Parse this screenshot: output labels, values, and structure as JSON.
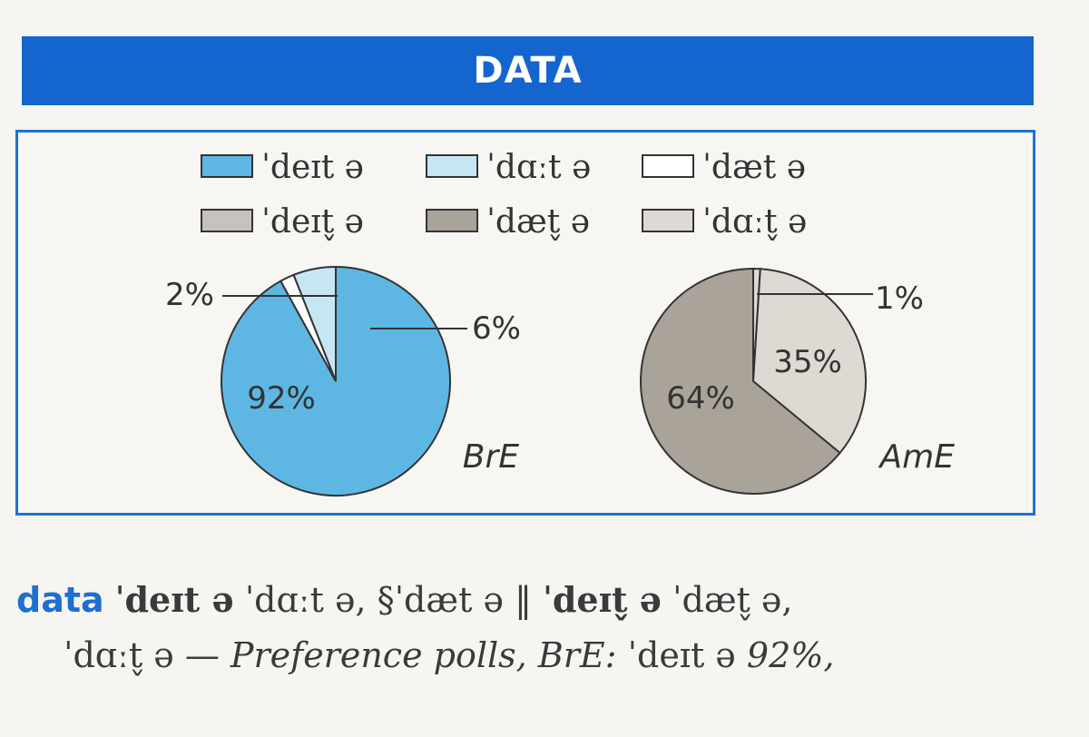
{
  "header": {
    "title": "DATA"
  },
  "chart_data": [
    {
      "type": "pie",
      "label": "BrE",
      "slices": [
        {
          "legend_index": 0,
          "value": 92,
          "label": "92%"
        },
        {
          "legend_index": 2,
          "value": 2,
          "label": "2%"
        },
        {
          "legend_index": 1,
          "value": 6,
          "label": "6%"
        }
      ]
    },
    {
      "type": "pie",
      "label": "AmE",
      "slices": [
        {
          "legend_index": 5,
          "value": 1,
          "label": "1%"
        },
        {
          "legend_index": 5,
          "value": 35,
          "label": "35%"
        },
        {
          "legend_index": 4,
          "value": 64,
          "label": "64%"
        }
      ]
    }
  ],
  "legend": [
    {
      "text": "ˈdeɪt ə",
      "color": "#5eb7e3"
    },
    {
      "text": "ˈdɑːt ə",
      "color": "#c6e6f4"
    },
    {
      "text": "ˈdæt ə",
      "color": "#ffffff"
    },
    {
      "text": "ˈdeɪt̬ ə",
      "color": "#c7c3bc"
    },
    {
      "text": "ˈdæt̬ ə",
      "color": "#a9a39a"
    },
    {
      "text": "ˈdɑːt̬ ə",
      "color": "#dedad3"
    }
  ],
  "entry": {
    "headword": "data",
    "line1_a": "ˈdeɪt ə",
    "line1_b": " ˈdɑːt ə, §ˈdæt ə ‖ ",
    "line1_c": "ˈdeɪt̬ ə",
    "line1_d": " ˈdæt̬ ə,",
    "line2_a": "ˈdɑːt̬ ə — ",
    "line2_b": "Preference polls, BrE:",
    "line2_c": " ˈdeɪt ə ",
    "line2_d": "92%,"
  }
}
